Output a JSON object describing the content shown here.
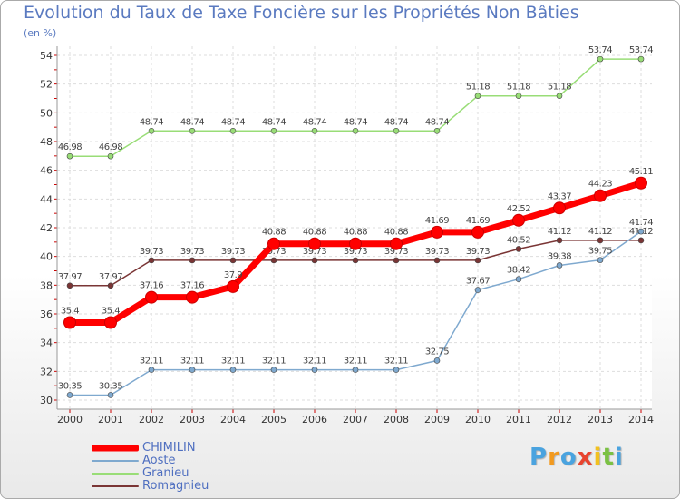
{
  "title": "Evolution du Taux de Taxe Foncière sur les Propriétés Non Bâties",
  "subtitle": "(en %)",
  "chart_data": {
    "type": "line",
    "title": "Evolution du Taux de Taxe Foncière sur les Propriétés Non Bâties",
    "ylabel": "(en %)",
    "xlabel": "",
    "categories": [
      "2000",
      "2001",
      "2002",
      "2003",
      "2004",
      "2005",
      "2006",
      "2007",
      "2008",
      "2009",
      "2010",
      "2011",
      "2012",
      "2013",
      "2014"
    ],
    "ylim": [
      30,
      54
    ],
    "yticks": [
      30,
      32,
      34,
      36,
      38,
      40,
      42,
      44,
      46,
      48,
      50,
      52,
      54
    ],
    "grid": true,
    "legend_position": "bottom-left",
    "series": [
      {
        "name": "CHIMILIN",
        "color": "#ff0000",
        "values": [
          35.4,
          35.4,
          37.16,
          37.16,
          37.9,
          40.88,
          40.88,
          40.88,
          40.88,
          41.69,
          41.69,
          42.52,
          43.37,
          44.23,
          45.11
        ],
        "labels": [
          "35.4",
          "35.4",
          "37.16",
          "37.16",
          "37.9",
          "40.88",
          "40.88",
          "40.88",
          "40.88",
          "41.69",
          "41.69",
          "42.52",
          "43.37",
          "44.23",
          "45.11"
        ]
      },
      {
        "name": "Aoste",
        "color": "#7fa9cf",
        "values": [
          30.35,
          30.35,
          32.11,
          32.11,
          32.11,
          32.11,
          32.11,
          32.11,
          32.11,
          32.75,
          37.67,
          38.42,
          39.38,
          39.75,
          41.74
        ],
        "labels": [
          "30.35",
          "30.35",
          "32.11",
          "32.11",
          "32.11",
          "32.11",
          "32.11",
          "32.11",
          "32.11",
          "32.75",
          "37.67",
          "38.42",
          "39.38",
          "39.75",
          "41.74"
        ]
      },
      {
        "name": "Granieu",
        "color": "#99dd77",
        "values": [
          46.98,
          46.98,
          48.74,
          48.74,
          48.74,
          48.74,
          48.74,
          48.74,
          48.74,
          48.74,
          51.18,
          51.18,
          51.18,
          53.74,
          53.74
        ],
        "labels": [
          "46.98",
          "46.98",
          "48.74",
          "48.74",
          "48.74",
          "48.74",
          "48.74",
          "48.74",
          "48.74",
          "48.74",
          "51.18",
          "51.18",
          "51.18",
          "53.74",
          "53.74"
        ]
      },
      {
        "name": "Romagnieu",
        "color": "#7a3535",
        "values": [
          37.97,
          37.97,
          39.73,
          39.73,
          39.73,
          39.73,
          39.73,
          39.73,
          39.73,
          39.73,
          39.73,
          40.52,
          41.12,
          41.12,
          41.12
        ],
        "labels": [
          "37.97",
          "37.97",
          "39.73",
          "39.73",
          "39.73",
          "39.73",
          "39.73",
          "39.73",
          "39.73",
          "39.73",
          "39.73",
          "40.52",
          "41.12",
          "41.12",
          "41.12"
        ]
      }
    ]
  },
  "logo": {
    "letters": [
      "P",
      "r",
      "o",
      "x",
      "i",
      "t",
      "i"
    ],
    "colors": [
      "#4aa3df",
      "#f29a1f",
      "#4aa3df",
      "#e8432e",
      "#f2c11f",
      "#7bc143",
      "#4aa3df"
    ]
  }
}
